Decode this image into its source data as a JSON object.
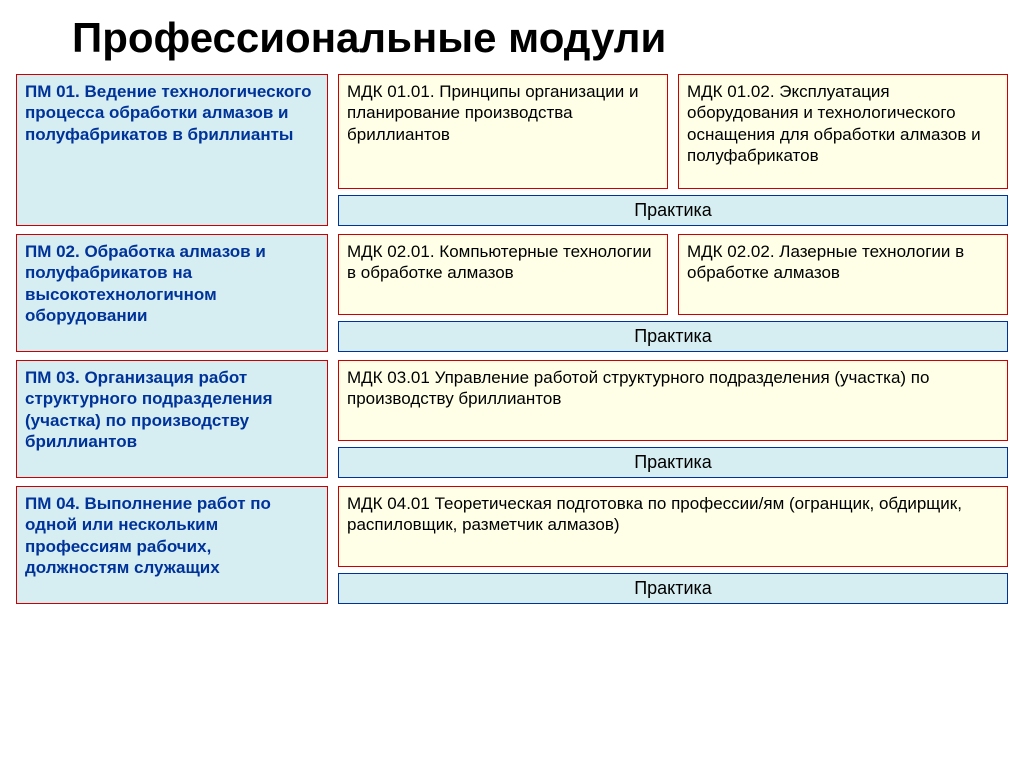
{
  "title": "Профессиональные модули",
  "colors": {
    "module_border": "#cc0000",
    "module_bg": "#d6eef2",
    "module_text": "#003399",
    "mdk_border": "#cc0000",
    "mdk_bg": "#feffe6",
    "mdk_text": "#000000",
    "practice_border": "#003399",
    "practice_bg": "#d6eef2",
    "practice_text": "#000000"
  },
  "rows": [
    {
      "module": "ПМ 01. Ведение технологического процесса обработки алмазов и полуфабрикатов в бриллианты",
      "module_height": 152,
      "mdk": [
        "МДК 01.01. Принципы организации и планирование производства бриллиантов",
        "МДК 01.02. Эксплуатация оборудования и технологического оснащения для обработки алмазов и полуфабрикатов"
      ],
      "practice": "Практика"
    },
    {
      "module": "ПМ 02. Обработка алмазов и полуфабрикатов на высокотехнологичном оборудовании",
      "module_height": 118,
      "mdk": [
        "МДК 02.01. Компьютерные технологии в обработке алмазов",
        "МДК 02.02. Лазерные технологии в обработке алмазов"
      ],
      "practice": "Практика"
    },
    {
      "module": "ПМ 03. Организация работ структурного подразделения (участка) по производству бриллиантов",
      "module_height": 118,
      "mdk": [
        "МДК 03.01 Управление работой структурного подразделения (участка) по производству бриллиантов"
      ],
      "practice": "Практика"
    },
    {
      "module": "ПМ 04. Выполнение работ по одной или нескольким профессиям рабочих, должностям служащих",
      "module_height": 118,
      "mdk": [
        "МДК 04.01 Теоретическая подготовка по профессии/ям (огранщик, обдирщик, распиловщик, разметчик алмазов)"
      ],
      "practice": "Практика"
    }
  ]
}
